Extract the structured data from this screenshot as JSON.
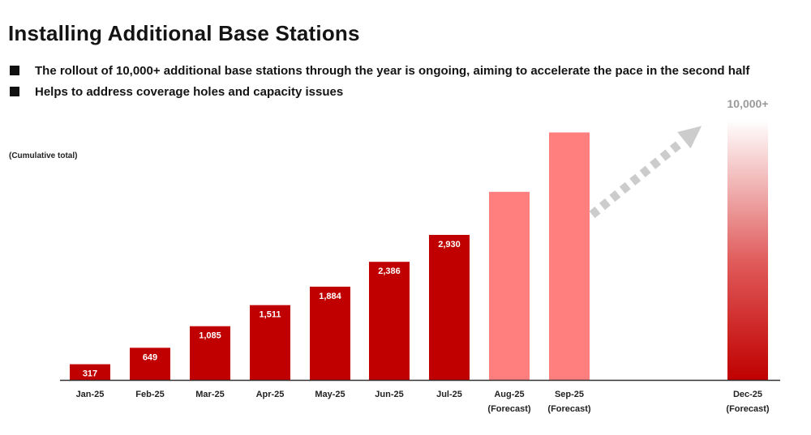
{
  "header": {
    "title": "Installing Additional Base Stations",
    "bullets": [
      "The rollout of 10,000+ additional base stations through the year is ongoing, aiming to accelerate the pace in the second half",
      "Helps to address coverage holes and capacity issues"
    ],
    "cumulative_note": "(Cumulative total)"
  },
  "colors": {
    "actual": "#c00000",
    "forecast": "#ff7f7f",
    "arrow": "#cccccc",
    "target_label": "#9a9a9a",
    "axis": "#333333"
  },
  "chart_data": {
    "type": "bar",
    "categories": [
      "Jan-25",
      "Feb-25",
      "Mar-25",
      "Apr-25",
      "May-25",
      "Jun-25",
      "Jul-25",
      "Aug-25",
      "Sep-25",
      "Dec-25"
    ],
    "sublabels": [
      "",
      "",
      "",
      "",
      "",
      "",
      "",
      "(Forecast)",
      "(Forecast)",
      "(Forecast)"
    ],
    "values": [
      317,
      649,
      1085,
      1511,
      1884,
      2386,
      2930,
      null,
      null,
      null
    ],
    "value_labels": [
      "317",
      "649",
      "1,085",
      "1,511",
      "1,884",
      "2,386",
      "2,930",
      "",
      "",
      ""
    ],
    "forecast_levels": [
      null,
      null,
      null,
      null,
      null,
      null,
      null,
      3800,
      5000,
      10000
    ],
    "target_label": "10,000+",
    "bar_styles": [
      "actual",
      "actual",
      "actual",
      "actual",
      "actual",
      "actual",
      "actual",
      "forecast",
      "forecast",
      "gradient"
    ],
    "ylabel": "(Cumulative total)",
    "grid": false,
    "legend": "none"
  }
}
